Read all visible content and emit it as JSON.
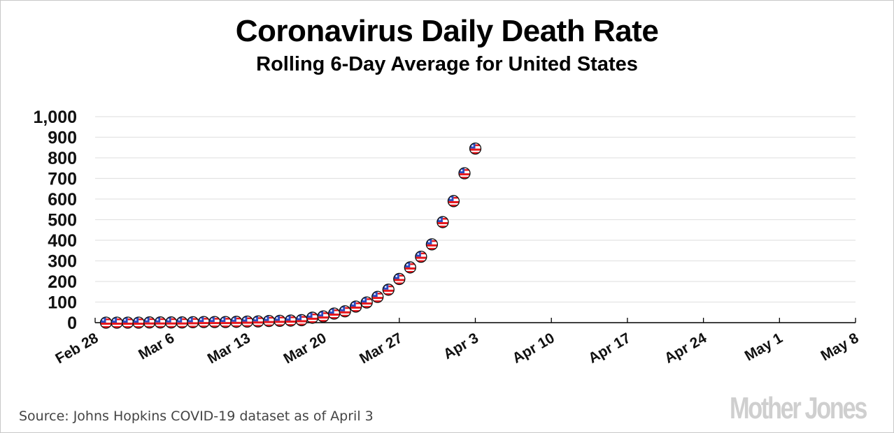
{
  "chart_data": {
    "type": "scatter",
    "title": "Coronavirus Daily Death Rate",
    "subtitle": "Rolling 6-Day Average for United States",
    "xlabel": "",
    "ylabel": "",
    "ylim": [
      0,
      1000
    ],
    "yticks": [
      "0",
      "100",
      "200",
      "300",
      "400",
      "500",
      "600",
      "700",
      "800",
      "900",
      "1,000"
    ],
    "ytick_values": [
      0,
      100,
      200,
      300,
      400,
      500,
      600,
      700,
      800,
      900,
      1000
    ],
    "xlim_days": [
      0,
      70
    ],
    "xticks": [
      "Feb 28",
      "Mar 6",
      "Mar 13",
      "Mar 20",
      "Mar 27",
      "Apr 3",
      "Apr 10",
      "Apr 17",
      "Apr 24",
      "May 1",
      "May 8"
    ],
    "xtick_days": [
      0,
      7,
      14,
      21,
      28,
      35,
      42,
      49,
      56,
      63,
      70
    ],
    "grid": true,
    "marker": "us-flag-ball",
    "series": [
      {
        "name": "United States",
        "x_days": [
          1,
          2,
          3,
          4,
          5,
          6,
          7,
          8,
          9,
          10,
          11,
          12,
          13,
          14,
          15,
          16,
          17,
          18,
          19,
          20,
          21,
          22,
          23,
          24,
          25,
          26,
          27,
          28,
          29,
          30,
          31,
          32,
          33,
          34,
          35
        ],
        "x": [
          "Feb 29",
          "Mar 1",
          "Mar 2",
          "Mar 3",
          "Mar 4",
          "Mar 5",
          "Mar 6",
          "Mar 7",
          "Mar 8",
          "Mar 9",
          "Mar 10",
          "Mar 11",
          "Mar 12",
          "Mar 13",
          "Mar 14",
          "Mar 15",
          "Mar 16",
          "Mar 17",
          "Mar 18",
          "Mar 19",
          "Mar 20",
          "Mar 21",
          "Mar 22",
          "Mar 23",
          "Mar 24",
          "Mar 25",
          "Mar 26",
          "Mar 27",
          "Mar 28",
          "Mar 29",
          "Mar 30",
          "Mar 31",
          "Apr 1",
          "Apr 2",
          "Apr 3"
        ],
        "values": [
          0,
          0,
          0,
          0,
          1,
          1,
          1,
          1,
          2,
          3,
          3,
          3,
          4,
          5,
          6,
          8,
          9,
          10,
          12,
          24,
          30,
          44,
          55,
          78,
          98,
          125,
          160,
          212,
          268,
          320,
          380,
          488,
          590,
          725,
          845
        ]
      }
    ]
  },
  "footer": {
    "source": "Source: Johns Hopkins COVID-19 dataset as of April 3",
    "logo": "Mother Jones"
  }
}
